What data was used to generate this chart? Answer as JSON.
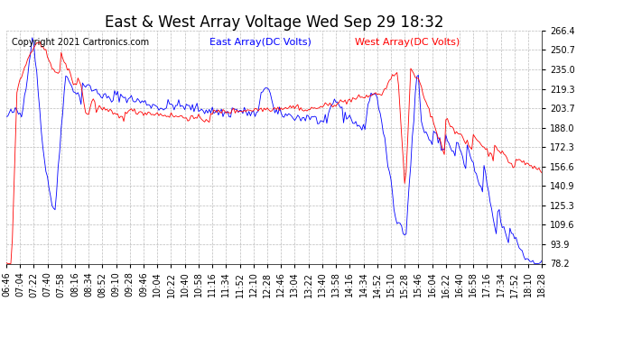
{
  "title": "East & West Array Voltage Wed Sep 29 18:32",
  "copyright": "Copyright 2021 Cartronics.com",
  "legend_east": "East Array(DC Volts)",
  "legend_west": "West Array(DC Volts)",
  "east_color": "#0000ff",
  "west_color": "#ff0000",
  "background_color": "#ffffff",
  "grid_color": "#bbbbbb",
  "ylim": [
    78.2,
    266.4
  ],
  "yticks": [
    78.2,
    93.9,
    109.6,
    125.3,
    140.9,
    156.6,
    172.3,
    188.0,
    203.7,
    219.3,
    235.0,
    250.7,
    266.4
  ],
  "title_fontsize": 12,
  "legend_fontsize": 8,
  "copyright_fontsize": 7,
  "tick_fontsize": 7
}
